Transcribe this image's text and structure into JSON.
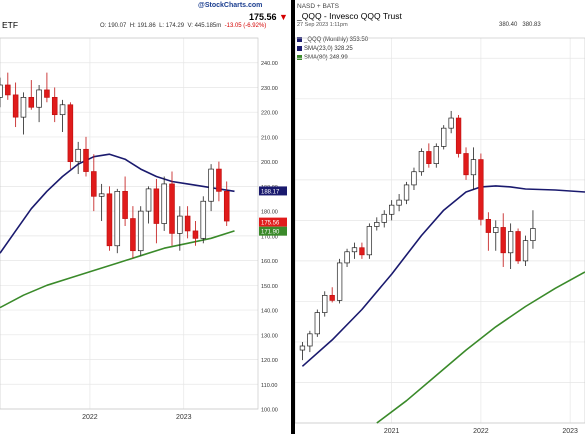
{
  "left": {
    "title": "ETF",
    "brand": "@StockCharts.com",
    "price": "175.56",
    "price_arrow": "▼",
    "ohlc": [
      "O: 190.07",
      "H: 191.86",
      "L: 174.29",
      "V: 445.185m"
    ],
    "change": "-13.05 (-6.92%)",
    "tag_sma23": "188.17",
    "tag_price": "175.56",
    "tag_sma80": "171.90"
  },
  "right": {
    "exchange": "NASD + BATS",
    "title": "_QQQ - Invesco QQQ Trust",
    "date": "27 Sep 2023 1:11pm",
    "ohlc": [
      "380.40",
      "380.83"
    ],
    "legend": [
      {
        "swatch_color": "#1a1a6e",
        "label": "_QQQ (Monthly) 353.50"
      },
      {
        "swatch_color": "#1a1a6e",
        "label": "SMA(23,0) 328.25"
      },
      {
        "swatch_color": "#3a8a2a",
        "label": "SMA(80) 248.99"
      }
    ]
  },
  "chart_data": [
    {
      "type": "candlestick",
      "panel": "left",
      "ylim": [
        100,
        250
      ],
      "yticks": [
        "100.00",
        "110.00",
        "120.00",
        "130.00",
        "140.00",
        "150.00",
        "160.00",
        "170.00",
        "180.00",
        "190.00",
        "200.00",
        "210.00",
        "220.00",
        "230.00",
        "240.00"
      ],
      "xticks": [
        {
          "label": "2022",
          "x": 11.5
        },
        {
          "label": "2023",
          "x": 23.5
        }
      ],
      "xlim": [
        0,
        33
      ],
      "colors": {
        "up": "#ffffff",
        "down": "#e01b1b",
        "sma23": "#1a1a6e",
        "sma80": "#3a8a2a"
      },
      "candles": [
        {
          "x": 0,
          "o": 226,
          "h": 234,
          "l": 222,
          "c": 231
        },
        {
          "x": 1,
          "o": 231,
          "h": 236,
          "l": 225,
          "c": 227
        },
        {
          "x": 2,
          "o": 227,
          "h": 232,
          "l": 214,
          "c": 218
        },
        {
          "x": 3,
          "o": 218,
          "h": 228,
          "l": 211,
          "c": 226
        },
        {
          "x": 4,
          "o": 226,
          "h": 233,
          "l": 221,
          "c": 222
        },
        {
          "x": 5,
          "o": 222,
          "h": 231,
          "l": 216,
          "c": 229
        },
        {
          "x": 6,
          "o": 229,
          "h": 236,
          "l": 224,
          "c": 226
        },
        {
          "x": 7,
          "o": 226,
          "h": 230,
          "l": 216,
          "c": 219
        },
        {
          "x": 8,
          "o": 219,
          "h": 225,
          "l": 212,
          "c": 223
        },
        {
          "x": 9,
          "o": 223,
          "h": 224,
          "l": 197,
          "c": 200
        },
        {
          "x": 10,
          "o": 200,
          "h": 208,
          "l": 195,
          "c": 205
        },
        {
          "x": 11,
          "o": 205,
          "h": 210,
          "l": 194,
          "c": 196
        },
        {
          "x": 12,
          "o": 196,
          "h": 203,
          "l": 180,
          "c": 186
        },
        {
          "x": 13,
          "o": 186,
          "h": 191,
          "l": 176,
          "c": 187
        },
        {
          "x": 14,
          "o": 187,
          "h": 190,
          "l": 164,
          "c": 166
        },
        {
          "x": 15,
          "o": 166,
          "h": 189,
          "l": 163,
          "c": 188
        },
        {
          "x": 16,
          "o": 188,
          "h": 194,
          "l": 174,
          "c": 177
        },
        {
          "x": 17,
          "o": 177,
          "h": 182,
          "l": 161,
          "c": 164
        },
        {
          "x": 18,
          "o": 164,
          "h": 182,
          "l": 162,
          "c": 180
        },
        {
          "x": 19,
          "o": 180,
          "h": 190,
          "l": 175,
          "c": 189
        },
        {
          "x": 20,
          "o": 189,
          "h": 193,
          "l": 167,
          "c": 175
        },
        {
          "x": 21,
          "o": 175,
          "h": 194,
          "l": 172,
          "c": 191
        },
        {
          "x": 22,
          "o": 191,
          "h": 196,
          "l": 166,
          "c": 171
        },
        {
          "x": 23,
          "o": 171,
          "h": 182,
          "l": 164,
          "c": 178
        },
        {
          "x": 24,
          "o": 178,
          "h": 182,
          "l": 169,
          "c": 172
        },
        {
          "x": 25,
          "o": 172,
          "h": 176,
          "l": 166,
          "c": 169
        },
        {
          "x": 26,
          "o": 169,
          "h": 186,
          "l": 167,
          "c": 184
        },
        {
          "x": 27,
          "o": 184,
          "h": 199,
          "l": 180,
          "c": 197
        },
        {
          "x": 28,
          "o": 197,
          "h": 200,
          "l": 184,
          "c": 188
        },
        {
          "x": 29,
          "o": 188,
          "h": 192,
          "l": 174,
          "c": 176
        }
      ],
      "sma23": [
        {
          "x": 0,
          "y": 163
        },
        {
          "x": 2,
          "y": 172
        },
        {
          "x": 4,
          "y": 181
        },
        {
          "x": 6,
          "y": 188
        },
        {
          "x": 8,
          "y": 194
        },
        {
          "x": 10,
          "y": 199
        },
        {
          "x": 12,
          "y": 202
        },
        {
          "x": 14,
          "y": 203
        },
        {
          "x": 16,
          "y": 201
        },
        {
          "x": 18,
          "y": 197
        },
        {
          "x": 20,
          "y": 194
        },
        {
          "x": 22,
          "y": 192
        },
        {
          "x": 24,
          "y": 191
        },
        {
          "x": 26,
          "y": 190
        },
        {
          "x": 28,
          "y": 189
        },
        {
          "x": 30,
          "y": 188
        }
      ],
      "sma80": [
        {
          "x": 0,
          "y": 141
        },
        {
          "x": 3,
          "y": 146
        },
        {
          "x": 6,
          "y": 150
        },
        {
          "x": 9,
          "y": 153
        },
        {
          "x": 12,
          "y": 156
        },
        {
          "x": 15,
          "y": 159
        },
        {
          "x": 18,
          "y": 162
        },
        {
          "x": 21,
          "y": 165
        },
        {
          "x": 24,
          "y": 167
        },
        {
          "x": 27,
          "y": 169
        },
        {
          "x": 30,
          "y": 172
        }
      ]
    },
    {
      "type": "candlestick",
      "panel": "right",
      "ylim": [
        100,
        480
      ],
      "xticks": [
        {
          "label": "2021",
          "x": 12
        },
        {
          "label": "2022",
          "x": 24
        },
        {
          "label": "2023",
          "x": 36
        }
      ],
      "xlim": [
        -1,
        38
      ],
      "colors": {
        "up": "#ffffff",
        "down": "#e01b1b",
        "sma23": "#1a1a6e",
        "sma80": "#3a8a2a"
      },
      "candles": [
        {
          "x": 0,
          "o": 172,
          "h": 180,
          "l": 162,
          "c": 176
        },
        {
          "x": 1,
          "o": 176,
          "h": 191,
          "l": 170,
          "c": 188
        },
        {
          "x": 2,
          "o": 188,
          "h": 212,
          "l": 185,
          "c": 209
        },
        {
          "x": 3,
          "o": 209,
          "h": 230,
          "l": 205,
          "c": 226
        },
        {
          "x": 4,
          "o": 226,
          "h": 234,
          "l": 219,
          "c": 221
        },
        {
          "x": 5,
          "o": 221,
          "h": 262,
          "l": 218,
          "c": 258
        },
        {
          "x": 6,
          "o": 258,
          "h": 272,
          "l": 254,
          "c": 269
        },
        {
          "x": 7,
          "o": 269,
          "h": 278,
          "l": 262,
          "c": 273
        },
        {
          "x": 8,
          "o": 273,
          "h": 278,
          "l": 262,
          "c": 266
        },
        {
          "x": 9,
          "o": 266,
          "h": 297,
          "l": 262,
          "c": 294
        },
        {
          "x": 10,
          "o": 294,
          "h": 303,
          "l": 290,
          "c": 298
        },
        {
          "x": 11,
          "o": 298,
          "h": 310,
          "l": 293,
          "c": 306
        },
        {
          "x": 12,
          "o": 306,
          "h": 320,
          "l": 300,
          "c": 315
        },
        {
          "x": 13,
          "o": 315,
          "h": 326,
          "l": 309,
          "c": 320
        },
        {
          "x": 14,
          "o": 320,
          "h": 338,
          "l": 316,
          "c": 335
        },
        {
          "x": 15,
          "o": 335,
          "h": 352,
          "l": 330,
          "c": 348
        },
        {
          "x": 16,
          "o": 348,
          "h": 371,
          "l": 344,
          "c": 368
        },
        {
          "x": 17,
          "o": 368,
          "h": 376,
          "l": 352,
          "c": 356
        },
        {
          "x": 18,
          "o": 356,
          "h": 376,
          "l": 352,
          "c": 373
        },
        {
          "x": 19,
          "o": 373,
          "h": 394,
          "l": 370,
          "c": 391
        },
        {
          "x": 20,
          "o": 391,
          "h": 408,
          "l": 386,
          "c": 401
        },
        {
          "x": 21,
          "o": 401,
          "h": 404,
          "l": 362,
          "c": 366
        },
        {
          "x": 22,
          "o": 366,
          "h": 372,
          "l": 340,
          "c": 345
        },
        {
          "x": 23,
          "o": 345,
          "h": 372,
          "l": 330,
          "c": 360
        },
        {
          "x": 24,
          "o": 360,
          "h": 366,
          "l": 295,
          "c": 301
        },
        {
          "x": 25,
          "o": 301,
          "h": 308,
          "l": 270,
          "c": 288
        },
        {
          "x": 26,
          "o": 288,
          "h": 300,
          "l": 270,
          "c": 293
        },
        {
          "x": 27,
          "o": 293,
          "h": 307,
          "l": 254,
          "c": 268
        },
        {
          "x": 28,
          "o": 268,
          "h": 297,
          "l": 252,
          "c": 289
        },
        {
          "x": 29,
          "o": 289,
          "h": 292,
          "l": 257,
          "c": 260
        },
        {
          "x": 30,
          "o": 260,
          "h": 285,
          "l": 255,
          "c": 280
        },
        {
          "x": 31,
          "o": 280,
          "h": 310,
          "l": 272,
          "c": 292
        }
      ],
      "sma23": [
        {
          "x": 0,
          "y": 156
        },
        {
          "x": 4,
          "y": 182
        },
        {
          "x": 8,
          "y": 212
        },
        {
          "x": 12,
          "y": 247
        },
        {
          "x": 16,
          "y": 285
        },
        {
          "x": 19,
          "y": 310
        },
        {
          "x": 22,
          "y": 328
        },
        {
          "x": 24,
          "y": 333
        },
        {
          "x": 26,
          "y": 334
        },
        {
          "x": 28,
          "y": 333
        },
        {
          "x": 30,
          "y": 331
        },
        {
          "x": 34,
          "y": 330
        },
        {
          "x": 38,
          "y": 328
        }
      ],
      "sma80": [
        {
          "x": 10,
          "y": 100
        },
        {
          "x": 14,
          "y": 122
        },
        {
          "x": 18,
          "y": 147
        },
        {
          "x": 22,
          "y": 172
        },
        {
          "x": 26,
          "y": 195
        },
        {
          "x": 30,
          "y": 215
        },
        {
          "x": 34,
          "y": 233
        },
        {
          "x": 38,
          "y": 249
        }
      ]
    }
  ]
}
